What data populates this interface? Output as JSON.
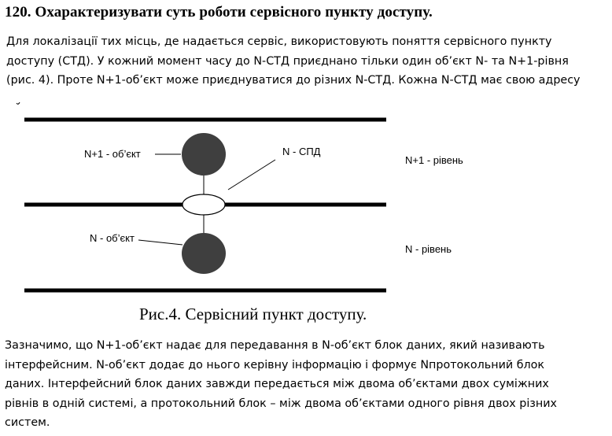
{
  "heading": "120. Охарактеризувати суть роботи сервісного пункту доступу.",
  "intro_lines": [
    "Для локалізації тих місць, де надається сервіс, використовують поняття сервісного пункту",
    "доступу (СТД). У кожний момент часу до N-СТД приєднано тільки один об’єкт N- та N+1-рівня",
    "(рис. 4). Проте N+1-об’єкт може приєднуватися до різних N-СТД. Кожна N-СТД має свою адресу"
  ],
  "figure": {
    "label_upper_object": "N+1 - об’єкт",
    "label_access_point": "N - СПД",
    "label_upper_level": "N+1 - рівень",
    "label_lower_object": "N - об’єкт",
    "label_lower_level": "N - рівень",
    "caption": "Рис.4. Сервісний пункт доступу.",
    "fill_object": "#3f3f3f"
  },
  "body_lines": [
    "Зазначимо, що N+1-об’єкт надає для передавання в N-об’єкт блок даних, який називають",
    "інтерфейсним. N-об’єкт додає до нього керівну інформацію і формує Nпротокольний блок",
    "даних. Інтерфейсний блок даних завжди передається між двома об’єктами двох суміжних",
    "рівнів в одній системі, а протокольний блок – між двома об’єктами одного рівня двох різних",
    "систем."
  ]
}
